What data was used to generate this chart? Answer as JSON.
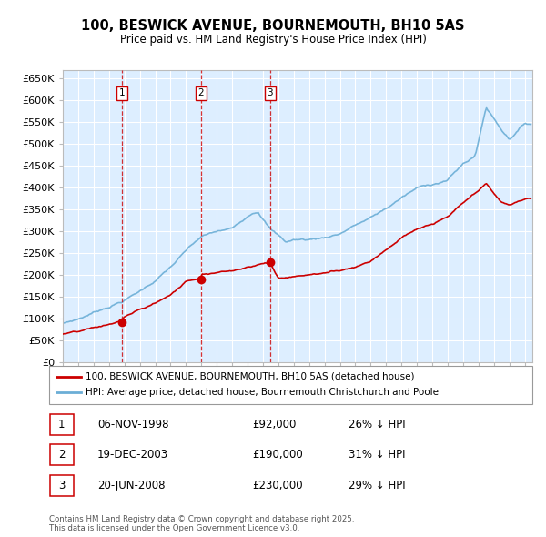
{
  "title": "100, BESWICK AVENUE, BOURNEMOUTH, BH10 5AS",
  "subtitle": "Price paid vs. HM Land Registry's House Price Index (HPI)",
  "ylim": [
    0,
    670000
  ],
  "yticks": [
    0,
    50000,
    100000,
    150000,
    200000,
    250000,
    300000,
    350000,
    400000,
    450000,
    500000,
    550000,
    600000,
    650000
  ],
  "ytick_labels": [
    "£0",
    "£50K",
    "£100K",
    "£150K",
    "£200K",
    "£250K",
    "£300K",
    "£350K",
    "£400K",
    "£450K",
    "£500K",
    "£550K",
    "£600K",
    "£650K"
  ],
  "hpi_color": "#6baed6",
  "price_color": "#cc0000",
  "bg_color": "#ddeeff",
  "grid_color": "#ffffff",
  "transactions": [
    {
      "date": 1998.85,
      "price": 92000,
      "label": "1"
    },
    {
      "date": 2003.96,
      "price": 190000,
      "label": "2"
    },
    {
      "date": 2008.47,
      "price": 230000,
      "label": "3"
    }
  ],
  "legend_entries": [
    {
      "label": "100, BESWICK AVENUE, BOURNEMOUTH, BH10 5AS (detached house)",
      "color": "#cc0000"
    },
    {
      "label": "HPI: Average price, detached house, Bournemouth Christchurch and Poole",
      "color": "#6baed6"
    }
  ],
  "table_rows": [
    {
      "num": "1",
      "date": "06-NOV-1998",
      "price": "£92,000",
      "hpi": "26% ↓ HPI"
    },
    {
      "num": "2",
      "date": "19-DEC-2003",
      "price": "£190,000",
      "hpi": "31% ↓ HPI"
    },
    {
      "num": "3",
      "date": "20-JUN-2008",
      "price": "£230,000",
      "hpi": "29% ↓ HPI"
    }
  ],
  "footnote": "Contains HM Land Registry data © Crown copyright and database right 2025.\nThis data is licensed under the Open Government Licence v3.0.",
  "xlim": [
    1995,
    2025.5
  ],
  "xticks": [
    1995,
    1996,
    1997,
    1998,
    1999,
    2000,
    2001,
    2002,
    2003,
    2004,
    2005,
    2006,
    2007,
    2008,
    2009,
    2010,
    2011,
    2012,
    2013,
    2014,
    2015,
    2016,
    2017,
    2018,
    2019,
    2020,
    2021,
    2022,
    2023,
    2024,
    2025
  ]
}
